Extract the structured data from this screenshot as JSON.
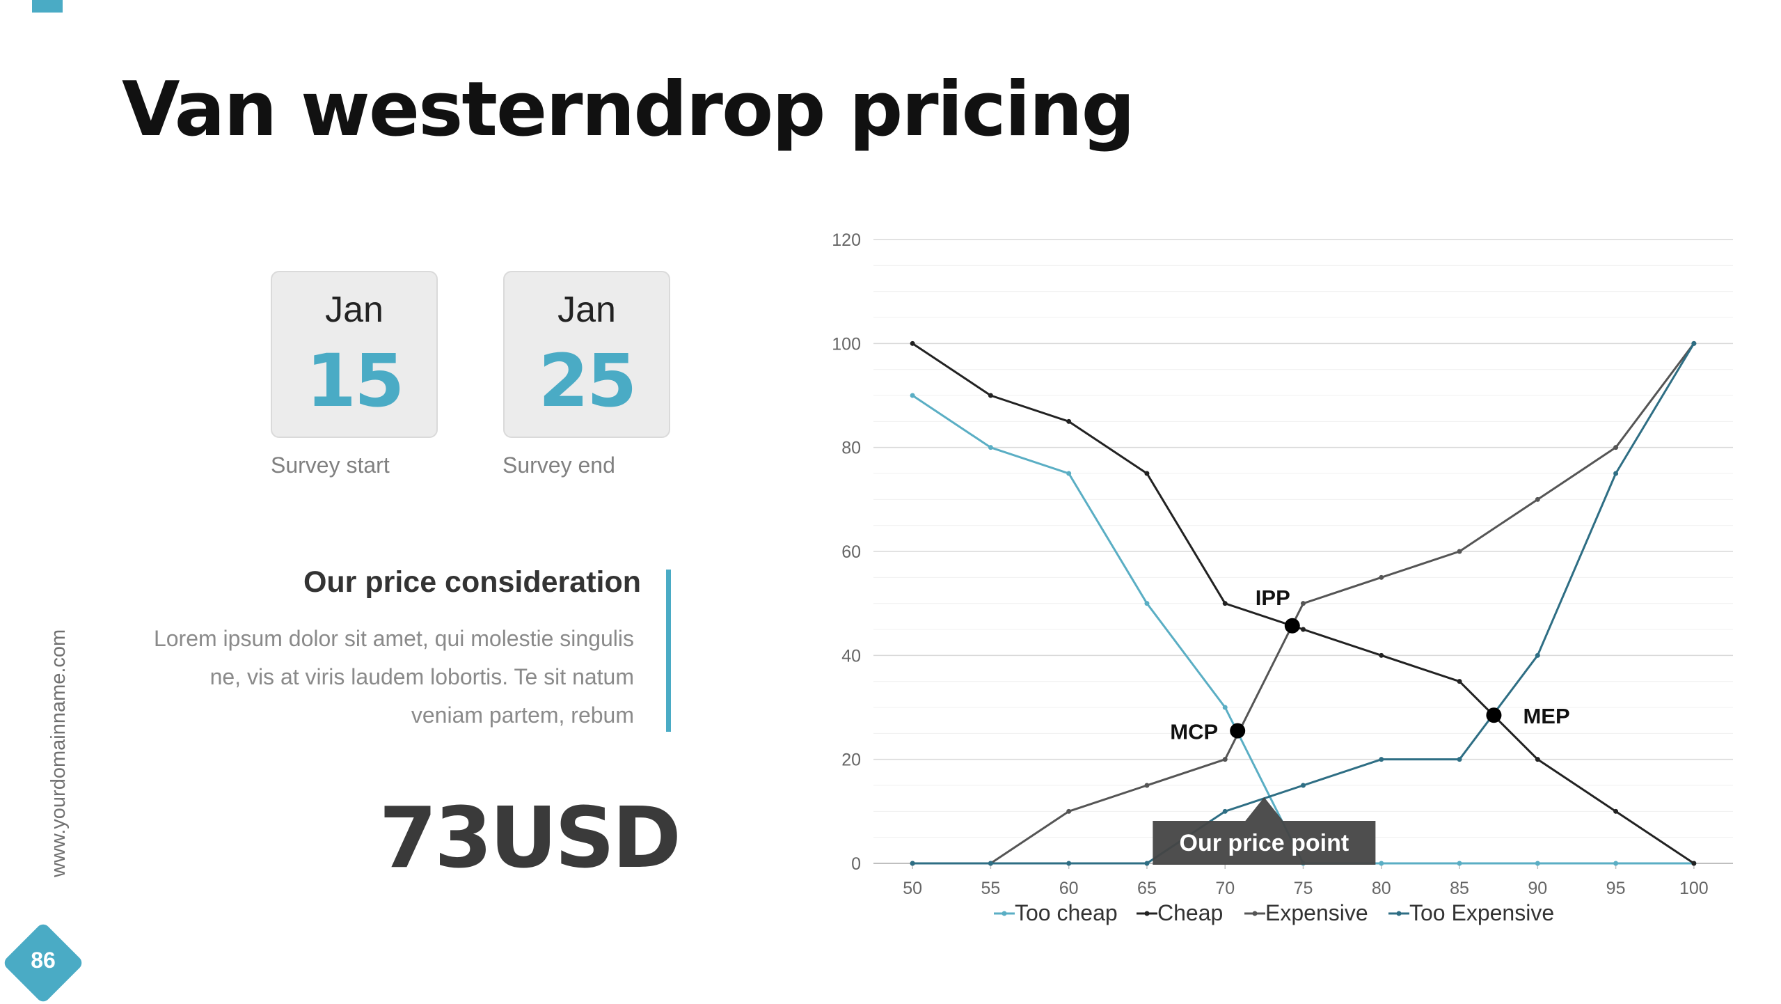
{
  "slide": {
    "title": "Van westerndrop pricing",
    "side_url": "www.yourdomainname.com",
    "page_number": "86",
    "accent_color": "#4aabc5"
  },
  "dates": {
    "start": {
      "month": "Jan",
      "day": "15",
      "caption": "Survey start"
    },
    "end": {
      "month": "Jan",
      "day": "25",
      "caption": "Survey end"
    }
  },
  "consideration": {
    "title": "Our price consideration",
    "body": "Lorem ipsum dolor sit amet, qui molestie singulis ne, vis at viris laudem lobortis. Te sit natum veniam partem, rebum"
  },
  "price": "73USD",
  "chart_data": {
    "type": "line",
    "x": [
      50,
      55,
      60,
      65,
      70,
      75,
      80,
      85,
      90,
      95,
      100
    ],
    "xlim": [
      47.5,
      102.5
    ],
    "ylim": [
      0,
      120
    ],
    "yticks": [
      0,
      20,
      40,
      60,
      80,
      100,
      120
    ],
    "grid": true,
    "legend_position": "bottom",
    "series": [
      {
        "name": "Too cheap",
        "color": "#5aaec4",
        "values": [
          90,
          80,
          75,
          50,
          30,
          0,
          0,
          0,
          0,
          0,
          0
        ]
      },
      {
        "name": "Cheap",
        "color": "#222222",
        "values": [
          100,
          90,
          85,
          75,
          50,
          45,
          40,
          35,
          20,
          10,
          0
        ]
      },
      {
        "name": "Expensive",
        "color": "#555555",
        "values": [
          0,
          0,
          10,
          15,
          20,
          50,
          55,
          60,
          70,
          80,
          100
        ]
      },
      {
        "name": "Too Expensive",
        "color": "#2e6e84",
        "values": [
          0,
          0,
          0,
          0,
          10,
          15,
          20,
          20,
          40,
          75,
          100
        ]
      }
    ],
    "annotations": [
      {
        "label": "IPP",
        "x": 74.3,
        "y": 45.7
      },
      {
        "label": "MCP",
        "x": 70.8,
        "y": 25.5
      },
      {
        "label": "MEP",
        "x": 87.2,
        "y": 28.5
      }
    ],
    "callout": {
      "label": "Our price point",
      "x": 72.5
    }
  }
}
